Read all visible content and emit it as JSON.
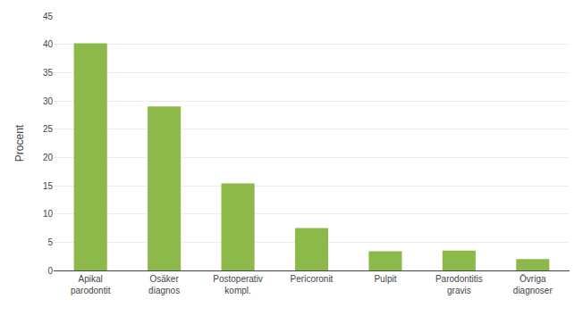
{
  "chart_data": {
    "type": "bar",
    "categories": [
      "Apikal\nparodontit",
      "Osäker\ndiagnos",
      "Postoperativ\nkompl.",
      "Pericoronit",
      "Pulpit",
      "Parodontitis\ngravis",
      "Övriga\ndiagnoser"
    ],
    "values": [
      40.2,
      29.0,
      15.4,
      7.5,
      3.4,
      3.5,
      2.0
    ],
    "color": "#8db84a",
    "ylabel": "Procent",
    "ylim": [
      0,
      45
    ],
    "yticks": [
      0,
      5,
      10,
      15,
      20,
      25,
      30,
      35,
      40,
      45
    ],
    "grid": true
  }
}
